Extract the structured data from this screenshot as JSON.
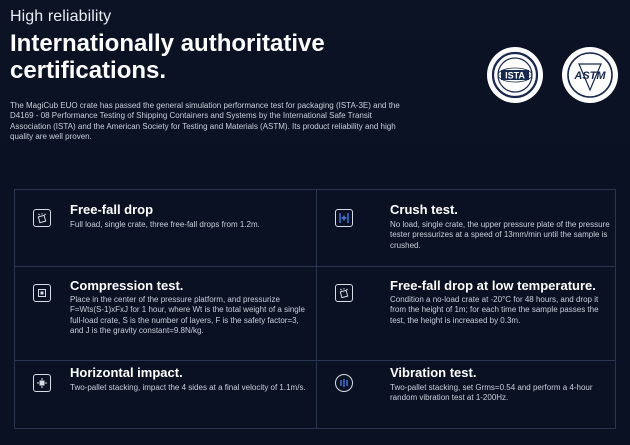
{
  "hero": {
    "eyebrow": "High reliability",
    "headline": "Internationally authoritative certifications.",
    "description": "The MagiCub EUO crate has passed the general simulation performance test for packaging (ISTA-3E) and the D4169 - 08 Performance Testing of Shipping Containers and Systems by the International Safe Transit Association (ISTA) and the American Society for Testing and Materials (ASTM). Its product reliability and high quality are well proven.",
    "badges": [
      {
        "name": "ista-badge",
        "text": "ISTA",
        "icon": "ista-logo"
      },
      {
        "name": "astm-badge",
        "text": "ASTM",
        "icon": "astm-logo"
      }
    ]
  },
  "tests": [
    {
      "title": "Free-fall drop",
      "body": "Full load, single crate, three free-fall drops from 1.2m.",
      "icon": "drop-icon"
    },
    {
      "title": "Crush test.",
      "body": "No load, single crate, the upper pressure plate of the pressure tester pressurizes at a speed of 13mm/min until the sample is crushed.",
      "icon": "crush-icon"
    },
    {
      "title": "Compression test.",
      "body": "Place in the center of the pressure platform, and pressurize F=Wts(S-1)xFxJ for 1 hour, where Wt is the total weight of a single full-load crate, S is the number of layers, F is the safety factor=3, and J is the gravity constant=9.8N/kg.",
      "icon": "compression-icon"
    },
    {
      "title": "Free-fall drop at low temperature.",
      "body": "Condition a no-load crate at -20°C for 48 hours, and drop it from the height of 1m; for each time the sample passes the test, the height is increased by 0.3m.",
      "icon": "low-temp-drop-icon"
    },
    {
      "title": "Horizontal impact.",
      "body": "Two-pallet stacking, impact the 4 sides at a final velocity of 1.1m/s.",
      "icon": "impact-icon"
    },
    {
      "title": "Vibration test.",
      "body": "Two-pallet stacking, set Grms=0.54 and perform a 4-hour random vibration test at 1-200Hz.",
      "icon": "vibration-icon"
    }
  ],
  "colors": {
    "background": "#0a1122",
    "grid_line": "#2a3550",
    "text": "#ffffff",
    "muted_text": "#c9cfdb",
    "badge_ink": "#16284f"
  }
}
